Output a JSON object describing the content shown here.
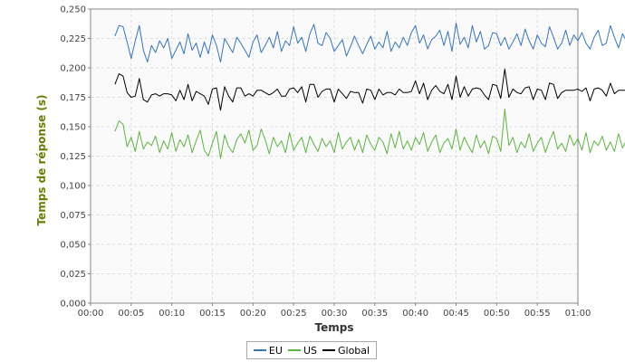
{
  "chart_data": {
    "type": "line",
    "xlabel": "Temps",
    "ylabel": "Temps de réponse (s)",
    "xlim_minutes": [
      0,
      60
    ],
    "ylim": [
      0,
      0.25
    ],
    "x_ticks": [
      "00:00",
      "00:05",
      "00:10",
      "00:15",
      "00:20",
      "00:25",
      "00:30",
      "00:35",
      "00:40",
      "00:45",
      "00:50",
      "00:55",
      "01:00"
    ],
    "y_ticks": [
      "0,000",
      "0,025",
      "0,050",
      "0,075",
      "0,100",
      "0,125",
      "0,150",
      "0,175",
      "0,200",
      "0,225",
      "0,250"
    ],
    "grid": true,
    "legend_position": "bottom",
    "x_start_minutes": 3,
    "x_step_minutes": 0.5,
    "series": [
      {
        "name": "EU",
        "color": "#3575c0",
        "values": [
          0.227,
          0.236,
          0.235,
          0.222,
          0.208,
          0.223,
          0.236,
          0.215,
          0.205,
          0.219,
          0.213,
          0.223,
          0.217,
          0.225,
          0.208,
          0.215,
          0.222,
          0.212,
          0.229,
          0.215,
          0.221,
          0.209,
          0.222,
          0.212,
          0.228,
          0.219,
          0.205,
          0.225,
          0.219,
          0.213,
          0.226,
          0.221,
          0.215,
          0.209,
          0.222,
          0.228,
          0.213,
          0.219,
          0.226,
          0.217,
          0.231,
          0.214,
          0.223,
          0.219,
          0.235,
          0.221,
          0.226,
          0.214,
          0.229,
          0.237,
          0.221,
          0.219,
          0.23,
          0.225,
          0.214,
          0.219,
          0.224,
          0.21,
          0.218,
          0.227,
          0.219,
          0.212,
          0.22,
          0.227,
          0.216,
          0.222,
          0.217,
          0.231,
          0.214,
          0.222,
          0.217,
          0.226,
          0.219,
          0.23,
          0.236,
          0.221,
          0.228,
          0.216,
          0.224,
          0.227,
          0.232,
          0.219,
          0.231,
          0.214,
          0.238,
          0.22,
          0.226,
          0.217,
          0.236,
          0.222,
          0.231,
          0.216,
          0.219,
          0.23,
          0.229,
          0.219,
          0.226,
          0.216,
          0.222,
          0.229,
          0.219,
          0.233,
          0.223,
          0.216,
          0.228,
          0.221,
          0.218,
          0.235,
          0.226,
          0.216,
          0.221,
          0.232,
          0.219,
          0.228,
          0.223,
          0.23,
          0.221,
          0.216,
          0.226,
          0.232,
          0.219,
          0.221,
          0.236,
          0.226,
          0.217,
          0.229,
          0.222,
          0.226,
          0.232,
          0.219,
          0.224,
          0.237,
          0.223,
          0.218,
          0.229,
          0.221,
          0.232,
          0.22,
          0.227,
          0.218,
          0.226,
          0.233,
          0.222,
          0.228,
          0.218,
          0.227,
          0.224,
          0.231,
          0.219,
          0.224,
          0.226,
          0.219,
          0.233,
          0.225,
          0.229,
          0.213,
          0.231,
          0.225,
          0.227,
          0.223,
          0.216,
          0.23,
          0.228,
          0.219
        ]
      },
      {
        "name": "US",
        "color": "#5cb540",
        "values": [
          0.146,
          0.155,
          0.152,
          0.133,
          0.141,
          0.129,
          0.146,
          0.131,
          0.137,
          0.134,
          0.142,
          0.128,
          0.138,
          0.131,
          0.145,
          0.129,
          0.139,
          0.133,
          0.143,
          0.128,
          0.138,
          0.147,
          0.13,
          0.125,
          0.136,
          0.146,
          0.123,
          0.143,
          0.133,
          0.128,
          0.139,
          0.144,
          0.136,
          0.147,
          0.13,
          0.134,
          0.148,
          0.139,
          0.127,
          0.141,
          0.133,
          0.138,
          0.128,
          0.145,
          0.13,
          0.136,
          0.141,
          0.128,
          0.142,
          0.135,
          0.129,
          0.14,
          0.133,
          0.138,
          0.128,
          0.145,
          0.131,
          0.137,
          0.141,
          0.13,
          0.139,
          0.128,
          0.143,
          0.135,
          0.13,
          0.141,
          0.137,
          0.127,
          0.144,
          0.132,
          0.146,
          0.131,
          0.138,
          0.13,
          0.141,
          0.135,
          0.145,
          0.129,
          0.137,
          0.143,
          0.128,
          0.136,
          0.14,
          0.131,
          0.148,
          0.13,
          0.141,
          0.134,
          0.128,
          0.143,
          0.132,
          0.138,
          0.127,
          0.142,
          0.14,
          0.129,
          0.165,
          0.134,
          0.141,
          0.128,
          0.137,
          0.132,
          0.144,
          0.129,
          0.136,
          0.141,
          0.128,
          0.138,
          0.146,
          0.131,
          0.136,
          0.129,
          0.143,
          0.134,
          0.14,
          0.13,
          0.145,
          0.128,
          0.138,
          0.134,
          0.142,
          0.13,
          0.137,
          0.129,
          0.144,
          0.132,
          0.139,
          0.146,
          0.131,
          0.136,
          0.141,
          0.128,
          0.138,
          0.133,
          0.143,
          0.13,
          0.138,
          0.145,
          0.131,
          0.137,
          0.128,
          0.141,
          0.135,
          0.152,
          0.13,
          0.137,
          0.142,
          0.129,
          0.146,
          0.133,
          0.138,
          0.13,
          0.142,
          0.135,
          0.128,
          0.14,
          0.134,
          0.143,
          0.136,
          0.13,
          0.14,
          0.135,
          0.128,
          0.142,
          0.118,
          0.139
        ]
      },
      {
        "name": "Global",
        "color": "#000000",
        "values": [
          0.186,
          0.195,
          0.193,
          0.179,
          0.175,
          0.176,
          0.191,
          0.173,
          0.171,
          0.177,
          0.178,
          0.176,
          0.178,
          0.178,
          0.177,
          0.172,
          0.181,
          0.173,
          0.186,
          0.172,
          0.18,
          0.178,
          0.176,
          0.169,
          0.182,
          0.183,
          0.164,
          0.184,
          0.176,
          0.171,
          0.183,
          0.183,
          0.176,
          0.178,
          0.176,
          0.181,
          0.181,
          0.179,
          0.177,
          0.179,
          0.182,
          0.176,
          0.176,
          0.182,
          0.183,
          0.179,
          0.184,
          0.171,
          0.186,
          0.186,
          0.175,
          0.18,
          0.182,
          0.182,
          0.171,
          0.182,
          0.178,
          0.174,
          0.18,
          0.179,
          0.179,
          0.17,
          0.182,
          0.181,
          0.173,
          0.182,
          0.177,
          0.179,
          0.179,
          0.177,
          0.182,
          0.179,
          0.179,
          0.18,
          0.189,
          0.178,
          0.187,
          0.173,
          0.181,
          0.185,
          0.18,
          0.178,
          0.186,
          0.173,
          0.193,
          0.175,
          0.184,
          0.176,
          0.182,
          0.183,
          0.182,
          0.177,
          0.173,
          0.186,
          0.185,
          0.174,
          0.199,
          0.175,
          0.182,
          0.179,
          0.178,
          0.183,
          0.184,
          0.173,
          0.182,
          0.181,
          0.173,
          0.187,
          0.186,
          0.174,
          0.179,
          0.181,
          0.181,
          0.181,
          0.182,
          0.18,
          0.183,
          0.172,
          0.182,
          0.183,
          0.181,
          0.176,
          0.187,
          0.178,
          0.181,
          0.181,
          0.181,
          0.186,
          0.182,
          0.178,
          0.183,
          0.183,
          0.181,
          0.176,
          0.186,
          0.176,
          0.185,
          0.183,
          0.179,
          0.182,
          0.177,
          0.187,
          0.179,
          0.183,
          0.173,
          0.184,
          0.18,
          0.192,
          0.175,
          0.181,
          0.184,
          0.174,
          0.19,
          0.179,
          0.184,
          0.172,
          0.187,
          0.18,
          0.178,
          0.182,
          0.175,
          0.187,
          0.182,
          0.175,
          0.185,
          0.182,
          0.173,
          0.185,
          0.175,
          0.179
        ]
      }
    ]
  }
}
